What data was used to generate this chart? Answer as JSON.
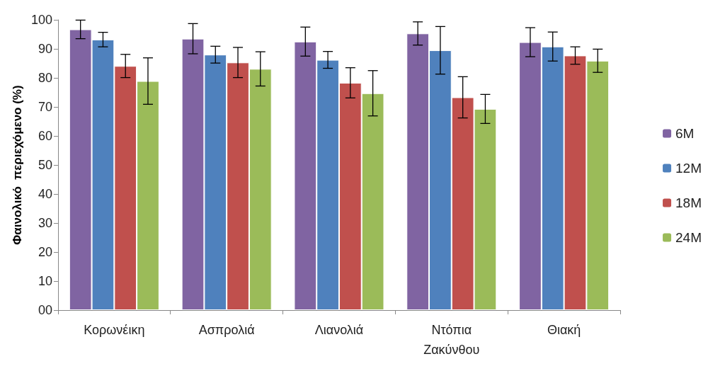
{
  "chart_data": {
    "type": "bar",
    "ylabel": "Φαινολικό  περιεχόμενο (%)",
    "categories": [
      "Κορωνέικη",
      "Ασπρολιά",
      "Λιανολιά",
      "Ντόπια Ζακύνθου",
      "Θιακή"
    ],
    "series": [
      {
        "name": "6M",
        "color": "#8064a2",
        "values": [
          96.7,
          93.5,
          92.5,
          95.3,
          92.3
        ],
        "errors": [
          3.2,
          5.2,
          5.0,
          4.0,
          5.0
        ]
      },
      {
        "name": "12M",
        "color": "#4f81bd",
        "values": [
          93.2,
          88.0,
          86.2,
          89.5,
          90.8
        ],
        "errors": [
          2.5,
          2.9,
          2.9,
          8.2,
          5.0
        ]
      },
      {
        "name": "18M",
        "color": "#c0504d",
        "values": [
          84.1,
          85.3,
          78.3,
          73.3,
          87.7
        ],
        "errors": [
          4.0,
          5.2,
          5.2,
          7.1,
          3.0
        ]
      },
      {
        "name": "24M",
        "color": "#9bbb59",
        "values": [
          78.9,
          83.1,
          74.7,
          69.3,
          85.9
        ],
        "errors": [
          8.0,
          5.9,
          7.8,
          5.0,
          4.0
        ]
      }
    ],
    "ylim": [
      0,
      100
    ],
    "yticks": [
      {
        "value": 0,
        "label": "00"
      },
      10,
      20,
      30,
      40,
      50,
      60,
      70,
      80,
      90,
      100
    ],
    "grid": false,
    "legend": "right"
  }
}
